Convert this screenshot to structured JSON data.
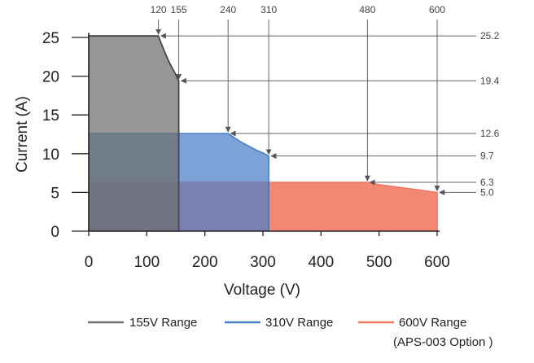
{
  "chart_data": {
    "type": "area",
    "title": "",
    "xlabel": "Voltage (V)",
    "ylabel": "Current (A)",
    "xlim": [
      0,
      600
    ],
    "ylim": [
      0,
      25.2
    ],
    "x_ticks": [
      0,
      100,
      200,
      300,
      400,
      500,
      600
    ],
    "y_ticks": [
      0,
      5,
      10,
      15,
      20,
      25
    ],
    "grid": false,
    "legend_position": "bottom",
    "series": [
      {
        "name": "155V Range",
        "color": "#6e6e6e",
        "points": [
          [
            0,
            25.2
          ],
          [
            120,
            25.2
          ],
          [
            125,
            24.2
          ],
          [
            130,
            23.3
          ],
          [
            135,
            22.4
          ],
          [
            140,
            21.6
          ],
          [
            145,
            20.9
          ],
          [
            150,
            20.2
          ],
          [
            155,
            19.4
          ],
          [
            155,
            0
          ]
        ]
      },
      {
        "name": "310V Range",
        "color": "#4a7ec9",
        "points": [
          [
            0,
            12.6
          ],
          [
            240,
            12.6
          ],
          [
            250,
            12.1
          ],
          [
            260,
            11.6
          ],
          [
            270,
            11.2
          ],
          [
            280,
            10.8
          ],
          [
            290,
            10.4
          ],
          [
            300,
            10.1
          ],
          [
            310,
            9.7
          ],
          [
            310,
            0
          ]
        ]
      },
      {
        "name": "600V Range",
        "sublabel": "(APS-003 Option )",
        "color": "#f07860",
        "points": [
          [
            0,
            6.3
          ],
          [
            480,
            6.3
          ],
          [
            500,
            6.0
          ],
          [
            520,
            5.8
          ],
          [
            540,
            5.6
          ],
          [
            560,
            5.4
          ],
          [
            580,
            5.2
          ],
          [
            600,
            5.0
          ],
          [
            600,
            0
          ]
        ]
      }
    ],
    "annotations": {
      "top": [
        {
          "label": "120",
          "x": 120,
          "y": 25.2
        },
        {
          "label": "155",
          "x": 155,
          "y": 19.4
        },
        {
          "label": "240",
          "x": 240,
          "y": 12.6
        },
        {
          "label": "310",
          "x": 310,
          "y": 9.7
        },
        {
          "label": "480",
          "x": 480,
          "y": 6.3
        },
        {
          "label": "600",
          "x": 600,
          "y": 5.0
        }
      ],
      "right": [
        {
          "label": "25.2",
          "x": 120,
          "y": 25.2
        },
        {
          "label": "19.4",
          "x": 155,
          "y": 19.4
        },
        {
          "label": "12.6",
          "x": 240,
          "y": 12.6
        },
        {
          "label": "9.7",
          "x": 310,
          "y": 9.7
        },
        {
          "label": "6.3",
          "x": 480,
          "y": 6.3
        },
        {
          "label": "5.0",
          "x": 600,
          "y": 5.0
        }
      ]
    }
  }
}
